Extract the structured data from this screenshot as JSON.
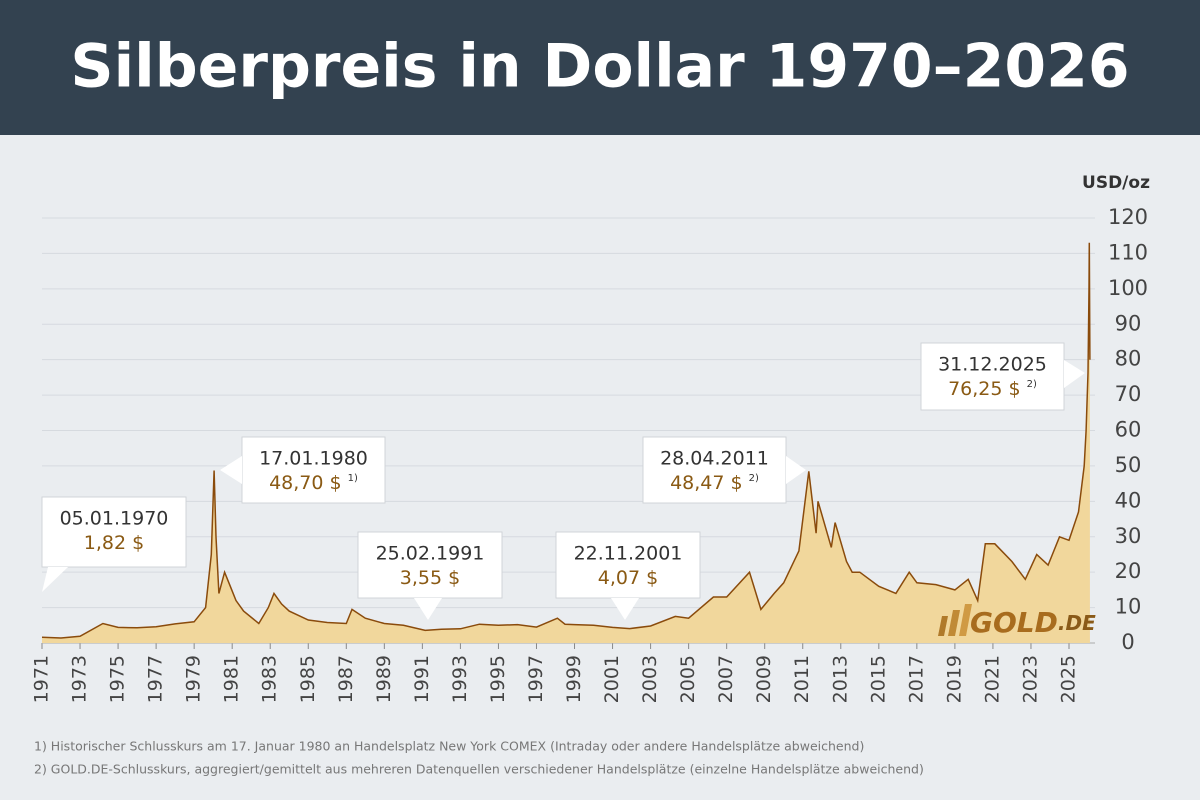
{
  "header": {
    "title": "Silberpreis in Dollar 1970–2026"
  },
  "chart_data": {
    "type": "area",
    "unit_label": "USD/oz",
    "color": "#f1d79c",
    "line_color": "#8a4b0c",
    "grid": true,
    "y_axis_side": "right",
    "xlim": [
      1971,
      2026.2
    ],
    "xticks": [
      1971,
      1973,
      1975,
      1977,
      1979,
      1981,
      1983,
      1985,
      1987,
      1989,
      1991,
      1993,
      1995,
      1997,
      1999,
      2001,
      2003,
      2005,
      2007,
      2009,
      2011,
      2013,
      2015,
      2017,
      2019,
      2021,
      2023,
      2025
    ],
    "ylim": [
      0,
      120
    ],
    "yticks": [
      0,
      10,
      20,
      30,
      40,
      50,
      60,
      70,
      80,
      90,
      100,
      110,
      120
    ],
    "x": [
      1971,
      1972,
      1973,
      1974.2,
      1975,
      1976,
      1977,
      1978,
      1979,
      1979.6,
      1979.9,
      1980.05,
      1980.15,
      1980.3,
      1980.6,
      1980.9,
      1981.2,
      1981.6,
      1982.4,
      1982.9,
      1983.2,
      1983.6,
      1984,
      1985,
      1986,
      1987,
      1987.3,
      1988,
      1989,
      1990,
      1991.15,
      1992,
      1993,
      1994,
      1995,
      1996,
      1997,
      1998.1,
      1998.5,
      1999,
      2000,
      2001,
      2001.9,
      2003,
      2004.3,
      2005,
      2006.3,
      2007,
      2008.2,
      2008.8,
      2009.5,
      2010,
      2010.8,
      2011.32,
      2011.7,
      2011.8,
      2012.5,
      2012.7,
      2013.3,
      2013.6,
      2014,
      2015,
      2015.9,
      2016.6,
      2017,
      2018,
      2019,
      2019.7,
      2020.2,
      2020.6,
      2021.1,
      2022,
      2022.7,
      2023.3,
      2023.9,
      2024.5,
      2025,
      2025.5,
      2025.8,
      2025.9,
      2026,
      2026.05,
      2026.07,
      2026.1
    ],
    "values": [
      1.6,
      1.4,
      1.9,
      5.5,
      4.4,
      4.3,
      4.6,
      5.4,
      6,
      10,
      25,
      48.7,
      30,
      14,
      20,
      16,
      12,
      9,
      5.5,
      10,
      14,
      11,
      9,
      6.5,
      5.8,
      5.5,
      9.5,
      7,
      5.5,
      5,
      3.55,
      3.9,
      4,
      5.3,
      5,
      5.2,
      4.5,
      7,
      5.3,
      5.2,
      5,
      4.4,
      4.07,
      4.8,
      7.5,
      7,
      13,
      13,
      20,
      9.5,
      14,
      17,
      26,
      48.47,
      31,
      40,
      27,
      34,
      23,
      20,
      20,
      16,
      14,
      20,
      17,
      16.5,
      15,
      18,
      12,
      28,
      28,
      23,
      18,
      25,
      22,
      30,
      29,
      37,
      50,
      60,
      76.25,
      100,
      113,
      80
    ],
    "annotations": [
      {
        "date": "05.01.1970",
        "price": "1,82 $"
      },
      {
        "date": "17.01.1980",
        "price": "48,70 $",
        "note": "1)"
      },
      {
        "date": "25.02.1991",
        "price": "3,55 $"
      },
      {
        "date": "22.11.2001",
        "price": "4,07 $"
      },
      {
        "date": "28.04.2011",
        "price": "48,47 $",
        "note": "2)"
      },
      {
        "date": "31.12.2025",
        "price": "76,25 $",
        "note": "2)"
      }
    ]
  },
  "logo": {
    "name": "GOLD",
    "suffix": ".DE"
  },
  "footnotes": [
    "1) Historischer Schlusskurs am 17.  Januar 1980 an Handelsplatz New York COMEX (Intraday oder andere Handelsplätze abweichend)",
    "2) GOLD.DE-Schlusskurs, aggregiert/gemittelt aus mehreren Datenquellen verschiedener Handelsplätze (einzelne Handelsplätze abweichend)"
  ]
}
